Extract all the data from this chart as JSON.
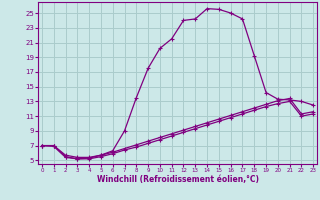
{
  "xlabel": "Windchill (Refroidissement éolien,°C)",
  "bg_color": "#cce8e8",
  "grid_color": "#aacccc",
  "line_color": "#800080",
  "x_ticks": [
    0,
    1,
    2,
    3,
    4,
    5,
    6,
    7,
    8,
    9,
    10,
    11,
    12,
    13,
    14,
    15,
    16,
    17,
    18,
    19,
    20,
    21,
    22,
    23
  ],
  "y_ticks": [
    5,
    7,
    9,
    11,
    13,
    15,
    17,
    19,
    21,
    23,
    25
  ],
  "xlim": [
    -0.3,
    23.3
  ],
  "ylim": [
    4.5,
    26.5
  ],
  "curve1_x": [
    0,
    1,
    2,
    3,
    4,
    5,
    6,
    7,
    8,
    9,
    10,
    11,
    12,
    13,
    14,
    15,
    16,
    17,
    18,
    19,
    20,
    21,
    22,
    23
  ],
  "curve1_y": [
    7.0,
    7.0,
    5.5,
    5.2,
    5.3,
    5.7,
    6.3,
    9.0,
    13.5,
    17.5,
    20.2,
    21.5,
    24.0,
    24.2,
    25.6,
    25.5,
    25.0,
    24.2,
    19.2,
    14.2,
    13.3,
    13.2,
    13.0,
    12.5
  ],
  "curve2_x": [
    0,
    1,
    2,
    3,
    4,
    5,
    6,
    7,
    8,
    9,
    10,
    11,
    12,
    13,
    14,
    15,
    16,
    17,
    18,
    19,
    20,
    21,
    22,
    23
  ],
  "curve2_y": [
    7.0,
    7.0,
    5.7,
    5.4,
    5.4,
    5.7,
    6.1,
    6.6,
    7.1,
    7.6,
    8.1,
    8.6,
    9.1,
    9.6,
    10.1,
    10.6,
    11.1,
    11.6,
    12.1,
    12.6,
    13.1,
    13.4,
    11.3,
    11.6
  ],
  "curve3_x": [
    0,
    1,
    2,
    3,
    4,
    5,
    6,
    7,
    8,
    9,
    10,
    11,
    12,
    13,
    14,
    15,
    16,
    17,
    18,
    19,
    20,
    21,
    22,
    23
  ],
  "curve3_y": [
    7.0,
    6.9,
    5.4,
    5.2,
    5.2,
    5.5,
    5.9,
    6.4,
    6.8,
    7.3,
    7.8,
    8.3,
    8.8,
    9.3,
    9.8,
    10.3,
    10.8,
    11.3,
    11.8,
    12.3,
    12.7,
    13.0,
    11.0,
    11.3
  ]
}
